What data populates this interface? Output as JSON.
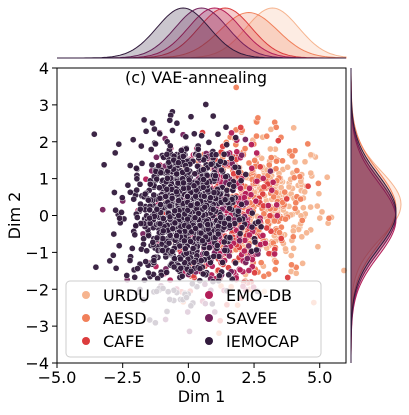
{
  "chart_data": {
    "type": "scatter",
    "title": "(c) VAE-annealing",
    "xlabel": "Dim 1",
    "ylabel": "Dim 2",
    "xlim": [
      -5.0,
      6.0
    ],
    "ylim": [
      -4,
      4
    ],
    "xticks": [
      -5.0,
      -2.5,
      0.0,
      2.5,
      5.0
    ],
    "xtick_labels": [
      "−5.0",
      "−2.5",
      "0.0",
      "2.5",
      "5.0"
    ],
    "yticks": [
      -4,
      -3,
      -2,
      -1,
      0,
      1,
      2,
      3,
      4
    ],
    "ytick_labels": [
      "−4",
      "−3",
      "−2",
      "−1",
      "0",
      "1",
      "2",
      "3",
      "4"
    ],
    "grid": false,
    "legend_position": "lower-left",
    "marginal_plots": "kde-top-and-right",
    "series": [
      {
        "name": "URDU",
        "color": "#f6b48f",
        "center": [
          3.2,
          0.3
        ],
        "spread": [
          1.0,
          0.9
        ],
        "n": 220
      },
      {
        "name": "AESD",
        "color": "#f1805a",
        "center": [
          2.3,
          0.2
        ],
        "spread": [
          1.1,
          1.0
        ],
        "n": 260
      },
      {
        "name": "CAFE",
        "color": "#dc3c3d",
        "center": [
          1.4,
          0.0
        ],
        "spread": [
          1.0,
          1.0
        ],
        "n": 200
      },
      {
        "name": "EMO-DB",
        "color": "#b31e58",
        "center": [
          1.0,
          -0.1
        ],
        "spread": [
          1.0,
          1.0
        ],
        "n": 240
      },
      {
        "name": "SAVEE",
        "color": "#74215c",
        "center": [
          0.5,
          0.0
        ],
        "spread": [
          1.0,
          1.0
        ],
        "n": 160
      },
      {
        "name": "IEMOCAP",
        "color": "#311a3c",
        "center": [
          -0.2,
          0.1
        ],
        "spread": [
          1.0,
          1.0
        ],
        "n": 900
      }
    ]
  }
}
